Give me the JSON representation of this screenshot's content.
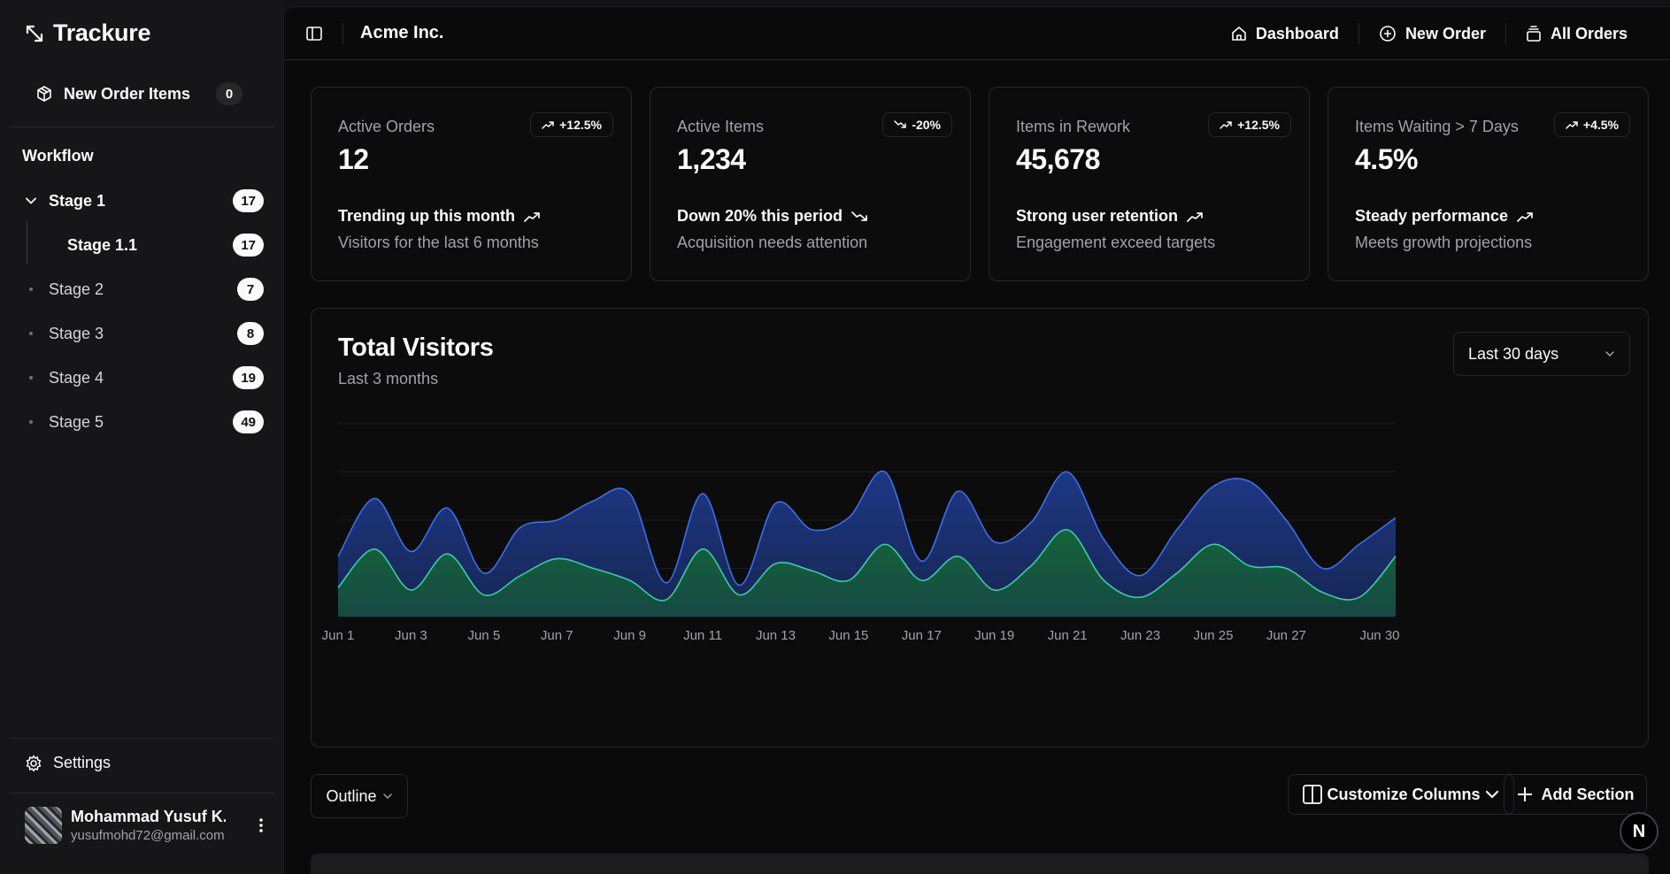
{
  "app": {
    "name": "Trackure"
  },
  "sidebar": {
    "new_order_items": {
      "label": "New Order Items",
      "count": "0"
    },
    "workflow_title": "Workflow",
    "stages": [
      {
        "label": "Stage 1",
        "count": "17"
      },
      {
        "label": "Stage 2",
        "count": "7"
      },
      {
        "label": "Stage 3",
        "count": "8"
      },
      {
        "label": "Stage 4",
        "count": "19"
      },
      {
        "label": "Stage 5",
        "count": "49"
      }
    ],
    "substage": {
      "label": "Stage 1.1",
      "count": "17"
    },
    "settings_label": "Settings",
    "user": {
      "name": "Mohammad Yusuf K...",
      "email": "yusufmohd72@gmail.com"
    }
  },
  "header": {
    "company": "Acme Inc.",
    "nav": {
      "dashboard": "Dashboard",
      "new_order": "New Order",
      "all_orders": "All Orders"
    }
  },
  "cards": [
    {
      "title": "Active Orders",
      "value": "12",
      "badge": "+12.5%",
      "trend": "up",
      "footer": "Trending up this month",
      "sub": "Visitors for the last 6 months"
    },
    {
      "title": "Active Items",
      "value": "1,234",
      "badge": "-20%",
      "trend": "down",
      "footer": "Down 20% this period",
      "sub": "Acquisition needs attention"
    },
    {
      "title": "Items in Rework",
      "value": "45,678",
      "badge": "+12.5%",
      "trend": "up",
      "footer": "Strong user retention",
      "sub": "Engagement exceed targets"
    },
    {
      "title": "Items Waiting > 7 Days",
      "value": "4.5%",
      "badge": "+4.5%",
      "trend": "up",
      "footer": "Steady performance",
      "sub": "Meets growth projections"
    }
  ],
  "visitors": {
    "title": "Total Visitors",
    "subtitle": "Last 3 months",
    "range": "Last 30 days"
  },
  "toolbar": {
    "outline": "Outline",
    "customize_columns": "Customize Columns",
    "add_section": "Add Section"
  },
  "fab_label": "N",
  "colors": {
    "series_a": "#1e3a8a",
    "series_a_stroke": "#3b6ef0",
    "series_b": "#166534",
    "series_b_stroke": "#34d399"
  },
  "chart_data": {
    "type": "area",
    "x": [
      "Jun 1",
      "Jun 2",
      "Jun 3",
      "Jun 4",
      "Jun 5",
      "Jun 6",
      "Jun 7",
      "Jun 8",
      "Jun 9",
      "Jun 10",
      "Jun 11",
      "Jun 12",
      "Jun 13",
      "Jun 14",
      "Jun 15",
      "Jun 16",
      "Jun 17",
      "Jun 18",
      "Jun 19",
      "Jun 20",
      "Jun 21",
      "Jun 22",
      "Jun 23",
      "Jun 24",
      "Jun 25",
      "Jun 26",
      "Jun 27",
      "Jun 28",
      "Jun 29",
      "Jun 30"
    ],
    "tick_labels": [
      "Jun 1",
      "Jun 3",
      "Jun 5",
      "Jun 7",
      "Jun 9",
      "Jun 11",
      "Jun 13",
      "Jun 15",
      "Jun 17",
      "Jun 19",
      "Jun 21",
      "Jun 23",
      "Jun 25",
      "Jun 27",
      "Jun 30"
    ],
    "series": [
      {
        "values": [
          125,
          245,
          135,
          225,
          90,
          185,
          200,
          240,
          255,
          70,
          255,
          65,
          235,
          180,
          205,
          300,
          115,
          260,
          155,
          195,
          300,
          160,
          85,
          180,
          270,
          280,
          200,
          100,
          150,
          205
        ]
      },
      {
        "values": [
          60,
          140,
          55,
          130,
          45,
          85,
          120,
          100,
          75,
          35,
          140,
          45,
          110,
          95,
          75,
          150,
          75,
          125,
          55,
          105,
          180,
          75,
          40,
          90,
          150,
          105,
          100,
          50,
          40,
          125
        ]
      }
    ],
    "ylim": [
      0,
      400
    ],
    "grid": true,
    "legend": "none"
  }
}
